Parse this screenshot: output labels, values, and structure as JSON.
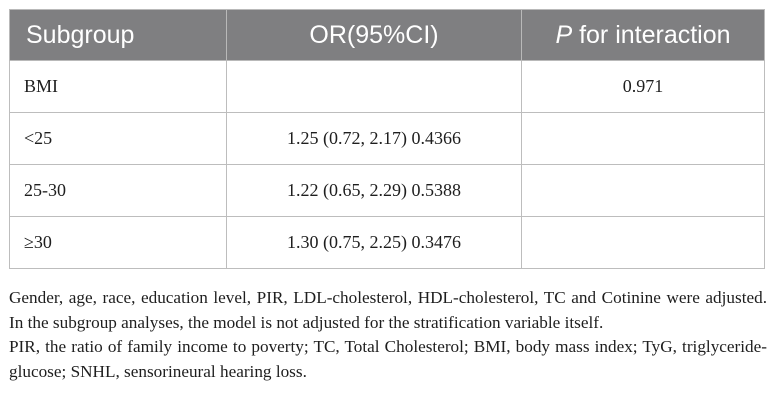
{
  "table": {
    "headers": {
      "subgroup": "Subgroup",
      "or_ci": "OR(95%CI)",
      "p_italic": "P",
      "p_rest": " for interaction"
    },
    "rows": [
      {
        "subgroup": "BMI",
        "or_ci": "",
        "p": "0.971"
      },
      {
        "subgroup": "<25",
        "or_ci": "1.25 (0.72, 2.17) 0.4366",
        "p": ""
      },
      {
        "subgroup": "25-30",
        "or_ci": "1.22 (0.65, 2.29) 0.5388",
        "p": ""
      },
      {
        "subgroup": "≥30",
        "or_ci": "1.30 (0.75, 2.25) 0.3476",
        "p": ""
      }
    ]
  },
  "footnotes": [
    "Gender, age, race, education level, PIR, LDL-cholesterol, HDL-cholesterol, TC and Cotinine were adjusted. In the subgroup analyses, the model is not adjusted for the stratification variable itself.",
    "PIR, the ratio of family income to poverty; TC, Total Cholesterol; BMI, body mass index; TyG, triglyceride-glucose; SNHL, sensorineural hearing loss."
  ],
  "colors": {
    "header_bg": "#7f7f81",
    "header_text": "#ffffff",
    "border": "#bdbdbd"
  }
}
